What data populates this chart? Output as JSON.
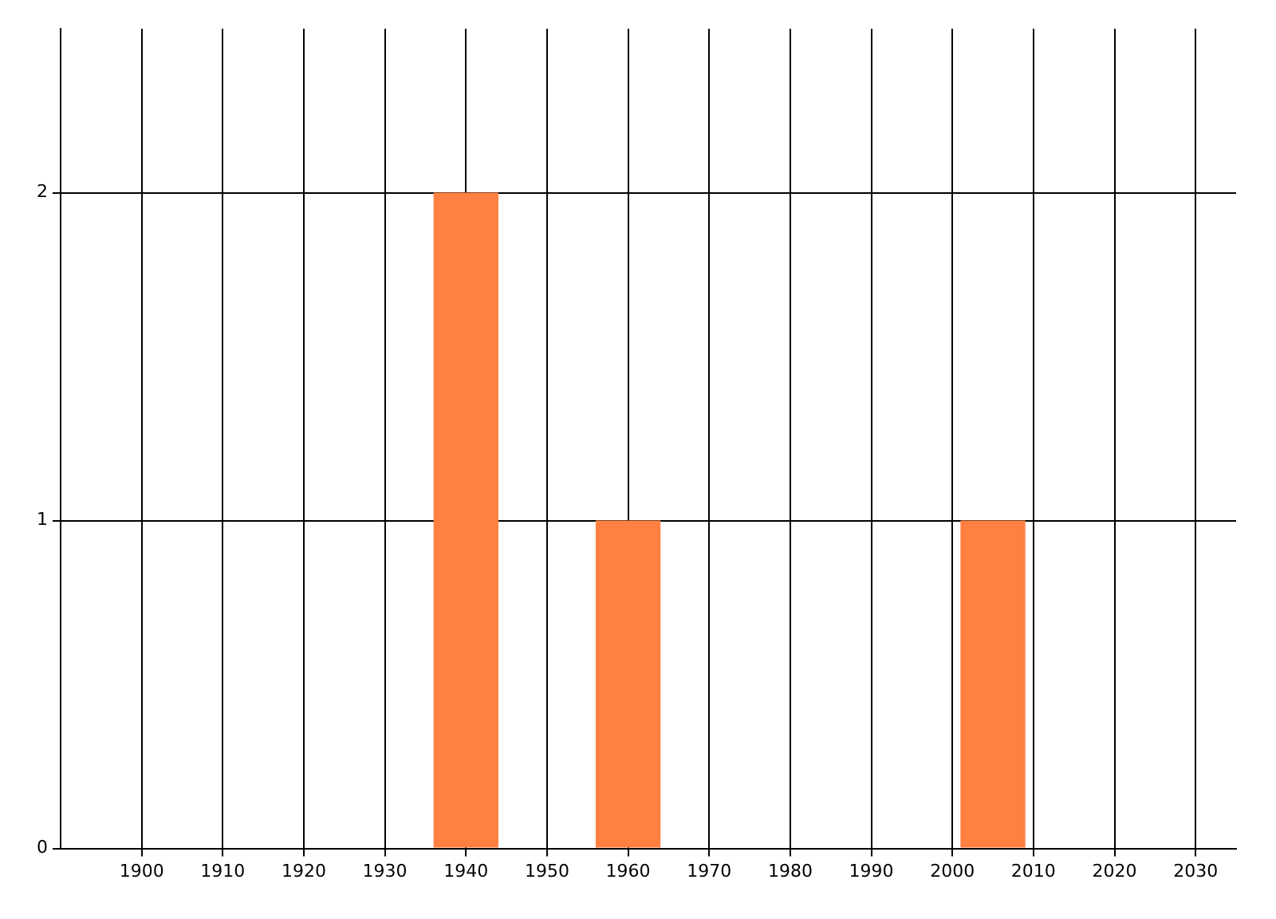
{
  "chart_data": {
    "type": "bar",
    "x": [
      1940,
      1960,
      2005
    ],
    "values": [
      2,
      1,
      1
    ],
    "color": "#ff8040",
    "xlim": [
      1890,
      2035
    ],
    "xticks": [
      1900,
      1910,
      1920,
      1930,
      1940,
      1950,
      1960,
      1970,
      1980,
      1990,
      2000,
      2010,
      2020,
      2030
    ],
    "ylim": [
      0,
      2.5
    ],
    "yticks": [
      0,
      1,
      2
    ],
    "grid": true,
    "legend": false
  }
}
